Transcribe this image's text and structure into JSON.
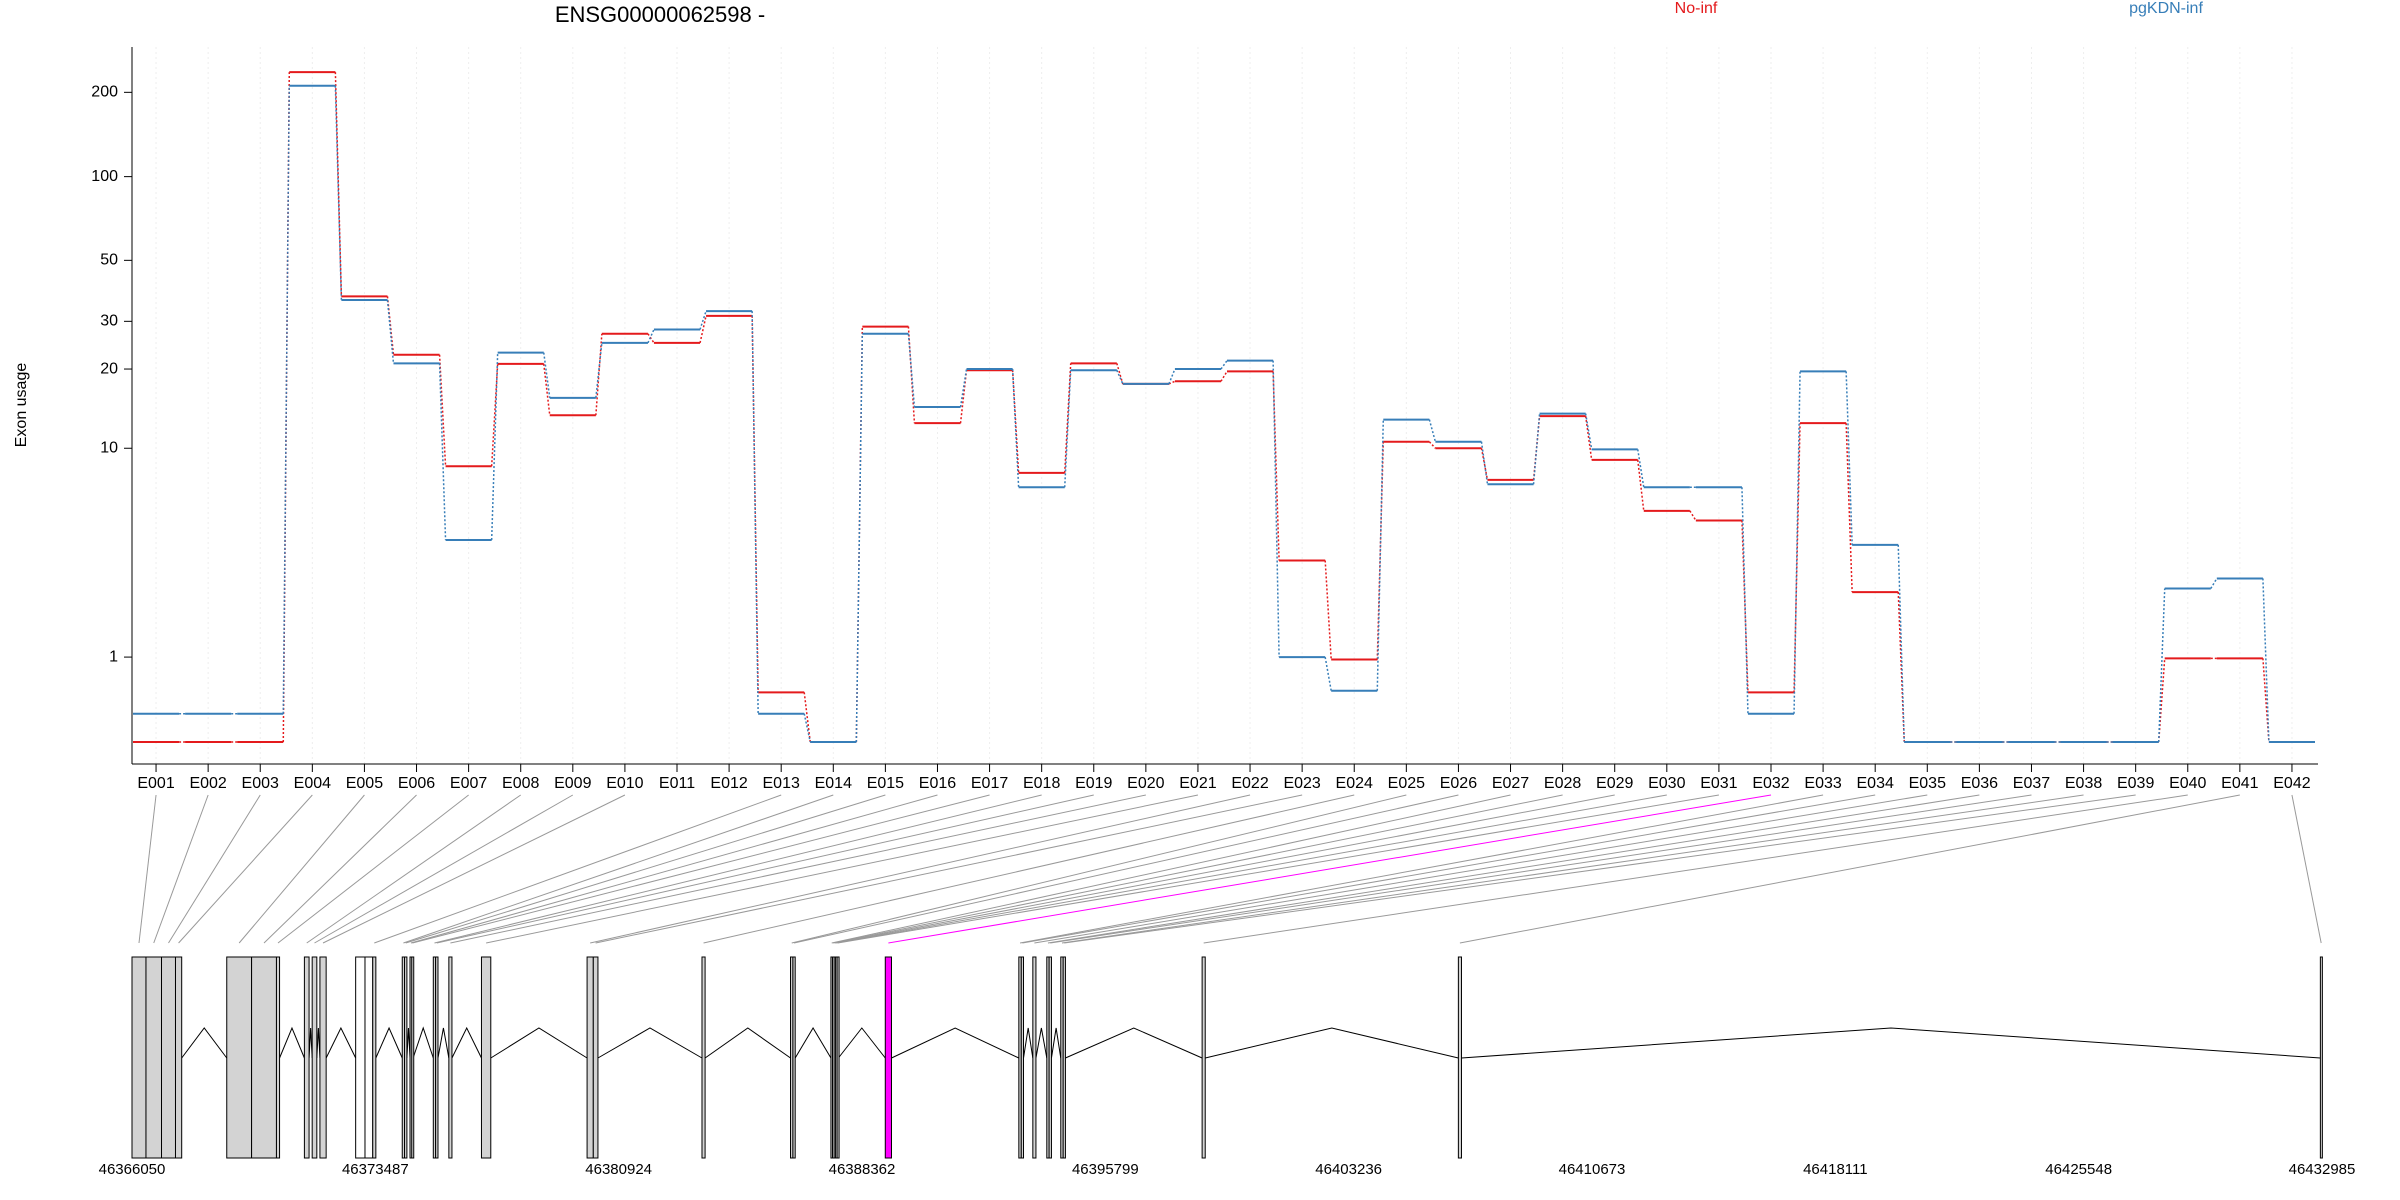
{
  "chart_data": [
    {
      "type": "line",
      "title": "ENSG00000062598 -",
      "y_label": "Exon usage",
      "log_scale": true,
      "grid": true,
      "legend": "top",
      "categories": [
        "E001",
        "E002",
        "E003",
        "E004",
        "E005",
        "E006",
        "E007",
        "E008",
        "E009",
        "E010",
        "E011",
        "E012",
        "E013",
        "E014",
        "E015",
        "E016",
        "E017",
        "E018",
        "E019",
        "E020",
        "E021",
        "E022",
        "E023",
        "E024",
        "E025",
        "E026",
        "E027",
        "E028",
        "E029",
        "E030",
        "E031",
        "E032",
        "E033",
        "E034",
        "E035",
        "E036",
        "E037",
        "E038",
        "E039",
        "E040",
        "E041",
        "E042"
      ],
      "series": [
        {
          "name": "No-inf",
          "color": "#e41a1c",
          "values": [
            0,
            0,
            0,
            236,
            37,
            22.6,
            8.5,
            20.9,
            13.4,
            27,
            25,
            31.4,
            0.5,
            0,
            28.7,
            12.5,
            19.8,
            8,
            21,
            17.6,
            18,
            19.6,
            3.4,
            0.96,
            10.6,
            10,
            7.5,
            13.3,
            9,
            5.6,
            5.1,
            0.5,
            12.5,
            2.4,
            0,
            0,
            0,
            0,
            0,
            0.98,
            0.98,
            0
          ]
        },
        {
          "name": "pgKDN-inf",
          "color": "#377eb8",
          "values": [
            0.26,
            0.26,
            0.26,
            211,
            35.9,
            21,
            4.2,
            23,
            15.6,
            25,
            28,
            32.7,
            0.26,
            0,
            27,
            14.4,
            20,
            7,
            19.8,
            17.6,
            20,
            21.5,
            1,
            0.52,
            12.9,
            10.6,
            7.2,
            13.6,
            9.9,
            7,
            7,
            0.26,
            19.6,
            4,
            0,
            0,
            0,
            0,
            0,
            2.5,
            2.8,
            0
          ]
        }
      ],
      "ylim": [
        0,
        290
      ],
      "yticks": [
        1,
        10,
        20,
        30,
        50,
        100,
        200
      ]
    },
    {
      "type": "gene-model",
      "xlim": [
        46366050,
        46432985
      ],
      "xticks": [
        46366050,
        46373487,
        46380924,
        46388362,
        46395799,
        46403236,
        46410673,
        46418111,
        46425548,
        46432985
      ],
      "exons": [
        {
          "start": 46366050,
          "end": 46366477,
          "color": "#d3d3d3"
        },
        {
          "start": 46366477,
          "end": 46366952,
          "color": "#d3d3d3"
        },
        {
          "start": 46366952,
          "end": 46367379,
          "color": "#d3d3d3"
        },
        {
          "start": 46367379,
          "end": 46367569,
          "color": "#d3d3d3"
        },
        {
          "start": 46368946,
          "end": 46369705,
          "color": "#d3d3d3"
        },
        {
          "start": 46369705,
          "end": 46370465,
          "color": "#d3d3d3"
        },
        {
          "start": 46370465,
          "end": 46370560,
          "color": "#d3d3d3"
        },
        {
          "start": 46371319,
          "end": 46371462,
          "color": "#d3d3d3"
        },
        {
          "start": 46371557,
          "end": 46371699,
          "color": "#d3d3d3"
        },
        {
          "start": 46371794,
          "end": 46371984,
          "color": "#d3d3d3"
        },
        {
          "start": 46372886,
          "end": 46373171,
          "color": "#ffffff"
        },
        {
          "start": 46373171,
          "end": 46373408,
          "color": "#ffffff"
        },
        {
          "start": 46373408,
          "end": 46373503,
          "color": "#d3d3d3"
        },
        {
          "start": 46374310,
          "end": 46374380,
          "color": "#d3d3d3"
        },
        {
          "start": 46374380,
          "end": 46374452,
          "color": "#d3d3d3"
        },
        {
          "start": 46374547,
          "end": 46374600,
          "color": "#d3d3d3"
        },
        {
          "start": 46374600,
          "end": 46374642,
          "color": "#d3d3d3"
        },
        {
          "start": 46375259,
          "end": 46375330,
          "color": "#d3d3d3"
        },
        {
          "start": 46375330,
          "end": 46375402,
          "color": "#d3d3d3"
        },
        {
          "start": 46375734,
          "end": 46375829,
          "color": "#d3d3d3"
        },
        {
          "start": 46376731,
          "end": 46377016,
          "color": "#d3d3d3"
        },
        {
          "start": 46379959,
          "end": 46380149,
          "color": "#d3d3d3"
        },
        {
          "start": 46380149,
          "end": 46380291,
          "color": "#d3d3d3"
        },
        {
          "start": 46383471,
          "end": 46383566,
          "color": "#d3d3d3"
        },
        {
          "start": 46386177,
          "end": 46386250,
          "color": "#d3d3d3"
        },
        {
          "start": 46386250,
          "end": 46386320,
          "color": "#d3d3d3"
        },
        {
          "start": 46387412,
          "end": 46387460,
          "color": "#d3d3d3"
        },
        {
          "start": 46387460,
          "end": 46387510,
          "color": "#d3d3d3"
        },
        {
          "start": 46387510,
          "end": 46387554,
          "color": "#d3d3d3"
        },
        {
          "start": 46387554,
          "end": 46387600,
          "color": "#d3d3d3"
        },
        {
          "start": 46387600,
          "end": 46387640,
          "color": "#d3d3d3"
        },
        {
          "start": 46389073,
          "end": 46389263,
          "color": "#ff00ff"
        },
        {
          "start": 46393155,
          "end": 46393230,
          "color": "#d3d3d3"
        },
        {
          "start": 46393230,
          "end": 46393298,
          "color": "#d3d3d3"
        },
        {
          "start": 46393583,
          "end": 46393678,
          "color": "#d3d3d3"
        },
        {
          "start": 46394010,
          "end": 46394080,
          "color": "#d3d3d3"
        },
        {
          "start": 46394080,
          "end": 46394152,
          "color": "#d3d3d3"
        },
        {
          "start": 46394437,
          "end": 46394510,
          "color": "#d3d3d3"
        },
        {
          "start": 46394510,
          "end": 46394579,
          "color": "#d3d3d3"
        },
        {
          "start": 46398757,
          "end": 46398852,
          "color": "#d3d3d3"
        },
        {
          "start": 46406589,
          "end": 46406684,
          "color": "#d3d3d3"
        },
        {
          "start": 46432935,
          "end": 46432985,
          "color": "#d3d3d3"
        }
      ]
    }
  ]
}
